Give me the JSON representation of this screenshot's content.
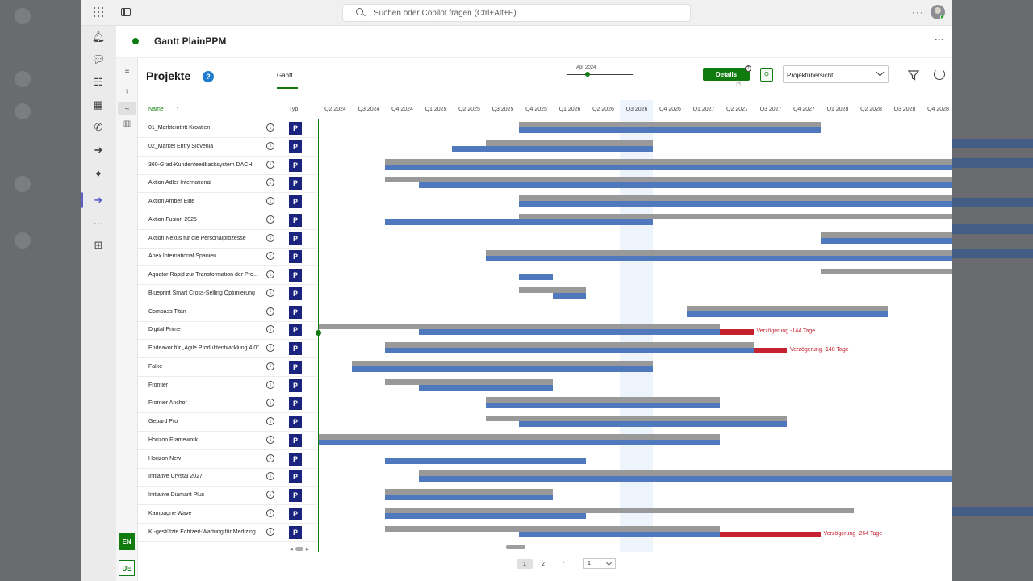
{
  "topbar": {
    "search_placeholder": "Suchen oder Copilot fragen (Ctrl+Alt+E)",
    "more": "···"
  },
  "app": {
    "title": "Gantt PlainPPM",
    "more": "···"
  },
  "page": {
    "title": "Projekte",
    "help": "?",
    "tab_gantt": "Gantt"
  },
  "slider": {
    "label": "Apr 2024"
  },
  "toolbar": {
    "details_label": "Details",
    "details_badge": "?",
    "q_label": "Q",
    "view_select": "Projektübersicht"
  },
  "lang": {
    "en": "EN",
    "de": "DE"
  },
  "table": {
    "col_name": "Name",
    "sort_arrow": "↑",
    "col_typ": "Typ",
    "info_glyph": "i",
    "type_glyph": "P",
    "quarters": [
      "Q2 2024",
      "Q3 2024",
      "Q4 2024",
      "Q1 2025",
      "Q2 2025",
      "Q3 2025",
      "Q4 2025",
      "Q1 2026",
      "Q2 2026",
      "Q3 2026",
      "Q4 2026",
      "Q1 2027",
      "Q2 2027",
      "Q3 2027",
      "Q4 2027",
      "Q1 2028",
      "Q2 2028",
      "Q3 2028",
      "Q4 2028"
    ],
    "highlight_quarter": "Q3 2026",
    "rows": [
      {
        "name": "01_Markteintritt Kroatien",
        "baseline": [
          "Q4 2025",
          "Q4 2027"
        ],
        "actual": [
          "Q4 2025",
          "Q4 2027"
        ]
      },
      {
        "name": "02_Market Entry Slovenia",
        "baseline": [
          "Q3 2025",
          "Q3 2026"
        ],
        "actual": [
          "Q2 2025",
          "Q3 2026"
        ]
      },
      {
        "name": "360-Grad-Kundenfeedbacksystem DACH",
        "baseline": [
          "Q4 2024",
          "Q4 2028"
        ],
        "actual": [
          "Q4 2024",
          "Q4 2028"
        ]
      },
      {
        "name": "Aktion Adler International",
        "baseline": [
          "Q4 2024",
          "Q4 2028"
        ],
        "actual": [
          "Q1 2025",
          "Q4 2028"
        ]
      },
      {
        "name": "Aktion Amber Elite",
        "baseline": [
          "Q4 2025",
          "Q4 2028"
        ],
        "actual": [
          "Q4 2025",
          "Q4 2028"
        ]
      },
      {
        "name": "Aktion Fusion 2025",
        "baseline": [
          "Q4 2025",
          "Q4 2028"
        ],
        "actual": [
          "Q4 2024",
          "Q3 2026"
        ]
      },
      {
        "name": "Aktion Nexus für die Personalprozesse",
        "baseline": [
          "Q1 2028",
          "Q4 2028"
        ],
        "actual": [
          "Q1 2028",
          "Q4 2028"
        ]
      },
      {
        "name": "Apex International Spanien",
        "baseline": [
          "Q3 2025",
          "Q4 2028"
        ],
        "actual": [
          "Q3 2025",
          "Q4 2028"
        ]
      },
      {
        "name": "Äquator Rapid zur Transformation der Pro...",
        "baseline": [
          "Q1 2028",
          "Q4 2028"
        ],
        "actual": [
          "Q4 2025",
          "Q4 2025"
        ]
      },
      {
        "name": "Blueprint Smart Cross-Selling Optimierung",
        "baseline": [
          "Q4 2025",
          "Q1 2026"
        ],
        "actual": [
          "Q1 2026",
          "Q1 2026"
        ]
      },
      {
        "name": "Compass Titan",
        "baseline": [
          "Q1 2027",
          "Q2 2028"
        ],
        "actual": [
          "Q1 2027",
          "Q2 2028"
        ]
      },
      {
        "name": "Digital Prime",
        "baseline": [
          "Q2 2024",
          "Q1 2027"
        ],
        "actual": [
          "Q1 2025",
          "Q1 2027"
        ],
        "delay_label": "Verzögerung -144 Tage"
      },
      {
        "name": "Endeavor für „Agile Produktentwicklung 4.0\"",
        "baseline": [
          "Q4 2024",
          "Q2 2027"
        ],
        "actual": [
          "Q4 2024",
          "Q2 2027"
        ],
        "delay_label": "Verzögerung -140 Tage"
      },
      {
        "name": "Falke",
        "baseline": [
          "Q3 2024",
          "Q3 2026"
        ],
        "actual": [
          "Q3 2024",
          "Q3 2026"
        ]
      },
      {
        "name": "Frontier",
        "baseline": [
          "Q4 2024",
          "Q4 2025"
        ],
        "actual": [
          "Q1 2025",
          "Q4 2025"
        ]
      },
      {
        "name": "Frontier Anchor",
        "baseline": [
          "Q3 2025",
          "Q1 2027"
        ],
        "actual": [
          "Q3 2025",
          "Q1 2027"
        ]
      },
      {
        "name": "Gepard Pro",
        "baseline": [
          "Q3 2025",
          "Q3 2027"
        ],
        "actual": [
          "Q4 2025",
          "Q3 2027"
        ]
      },
      {
        "name": "Horizon Framework",
        "baseline": [
          "Q2 2024",
          "Q1 2027"
        ],
        "actual": [
          "Q2 2024",
          "Q1 2027"
        ]
      },
      {
        "name": "Horizon New",
        "baseline": [],
        "actual": [
          "Q4 2024",
          "Q1 2026"
        ]
      },
      {
        "name": "Initiative Crystal 2027",
        "baseline": [
          "Q1 2025",
          "Q4 2028"
        ],
        "actual": [
          "Q1 2025",
          "Q4 2028"
        ]
      },
      {
        "name": "Initiative Diamant Plus",
        "baseline": [
          "Q4 2024",
          "Q4 2025"
        ],
        "actual": [
          "Q4 2024",
          "Q4 2025"
        ]
      },
      {
        "name": "Kampagne Wave",
        "baseline": [
          "Q4 2024",
          "Q1 2028"
        ],
        "actual": [
          "Q4 2024",
          "Q1 2026"
        ]
      },
      {
        "name": "KI-gestützte Echtzeit-Wartung für Medizing...",
        "baseline": [
          "Q4 2024",
          "Q1 2027"
        ],
        "actual": [
          "Q4 2025",
          "Q1 2027"
        ],
        "delay_label": "Verzögerung -264 Tage"
      }
    ]
  },
  "pager": {
    "page1": "1",
    "page2": "2",
    "next": "›",
    "page_select": "1"
  }
}
